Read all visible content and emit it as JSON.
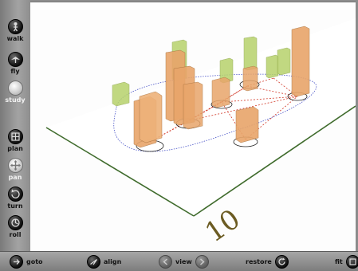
{
  "sidebar": {
    "tools": [
      {
        "id": "walk",
        "label": "walk",
        "icon": "walk-icon"
      },
      {
        "id": "fly",
        "label": "fly",
        "icon": "fly-icon"
      },
      {
        "id": "study",
        "label": "study",
        "icon": "study-icon",
        "active": true
      },
      {
        "id": "plan",
        "label": "plan",
        "icon": "plan-icon"
      },
      {
        "id": "pan",
        "label": "pan",
        "icon": "pan-icon"
      },
      {
        "id": "turn",
        "label": "turn",
        "icon": "turn-icon"
      },
      {
        "id": "roll",
        "label": "roll",
        "icon": "roll-icon"
      }
    ]
  },
  "bottombar": {
    "goto_label": "goto",
    "align_label": "align",
    "view_label": "view",
    "restore_label": "restore",
    "fit_label": "fit"
  },
  "scene": {
    "ground_label": "10",
    "colors": {
      "bar_orange": "#e8a56a",
      "bar_green": "#b7d26c",
      "grid_line": "#3f6b2c",
      "link_red": "#d23a2a",
      "link_blue": "#4a55c8"
    }
  }
}
